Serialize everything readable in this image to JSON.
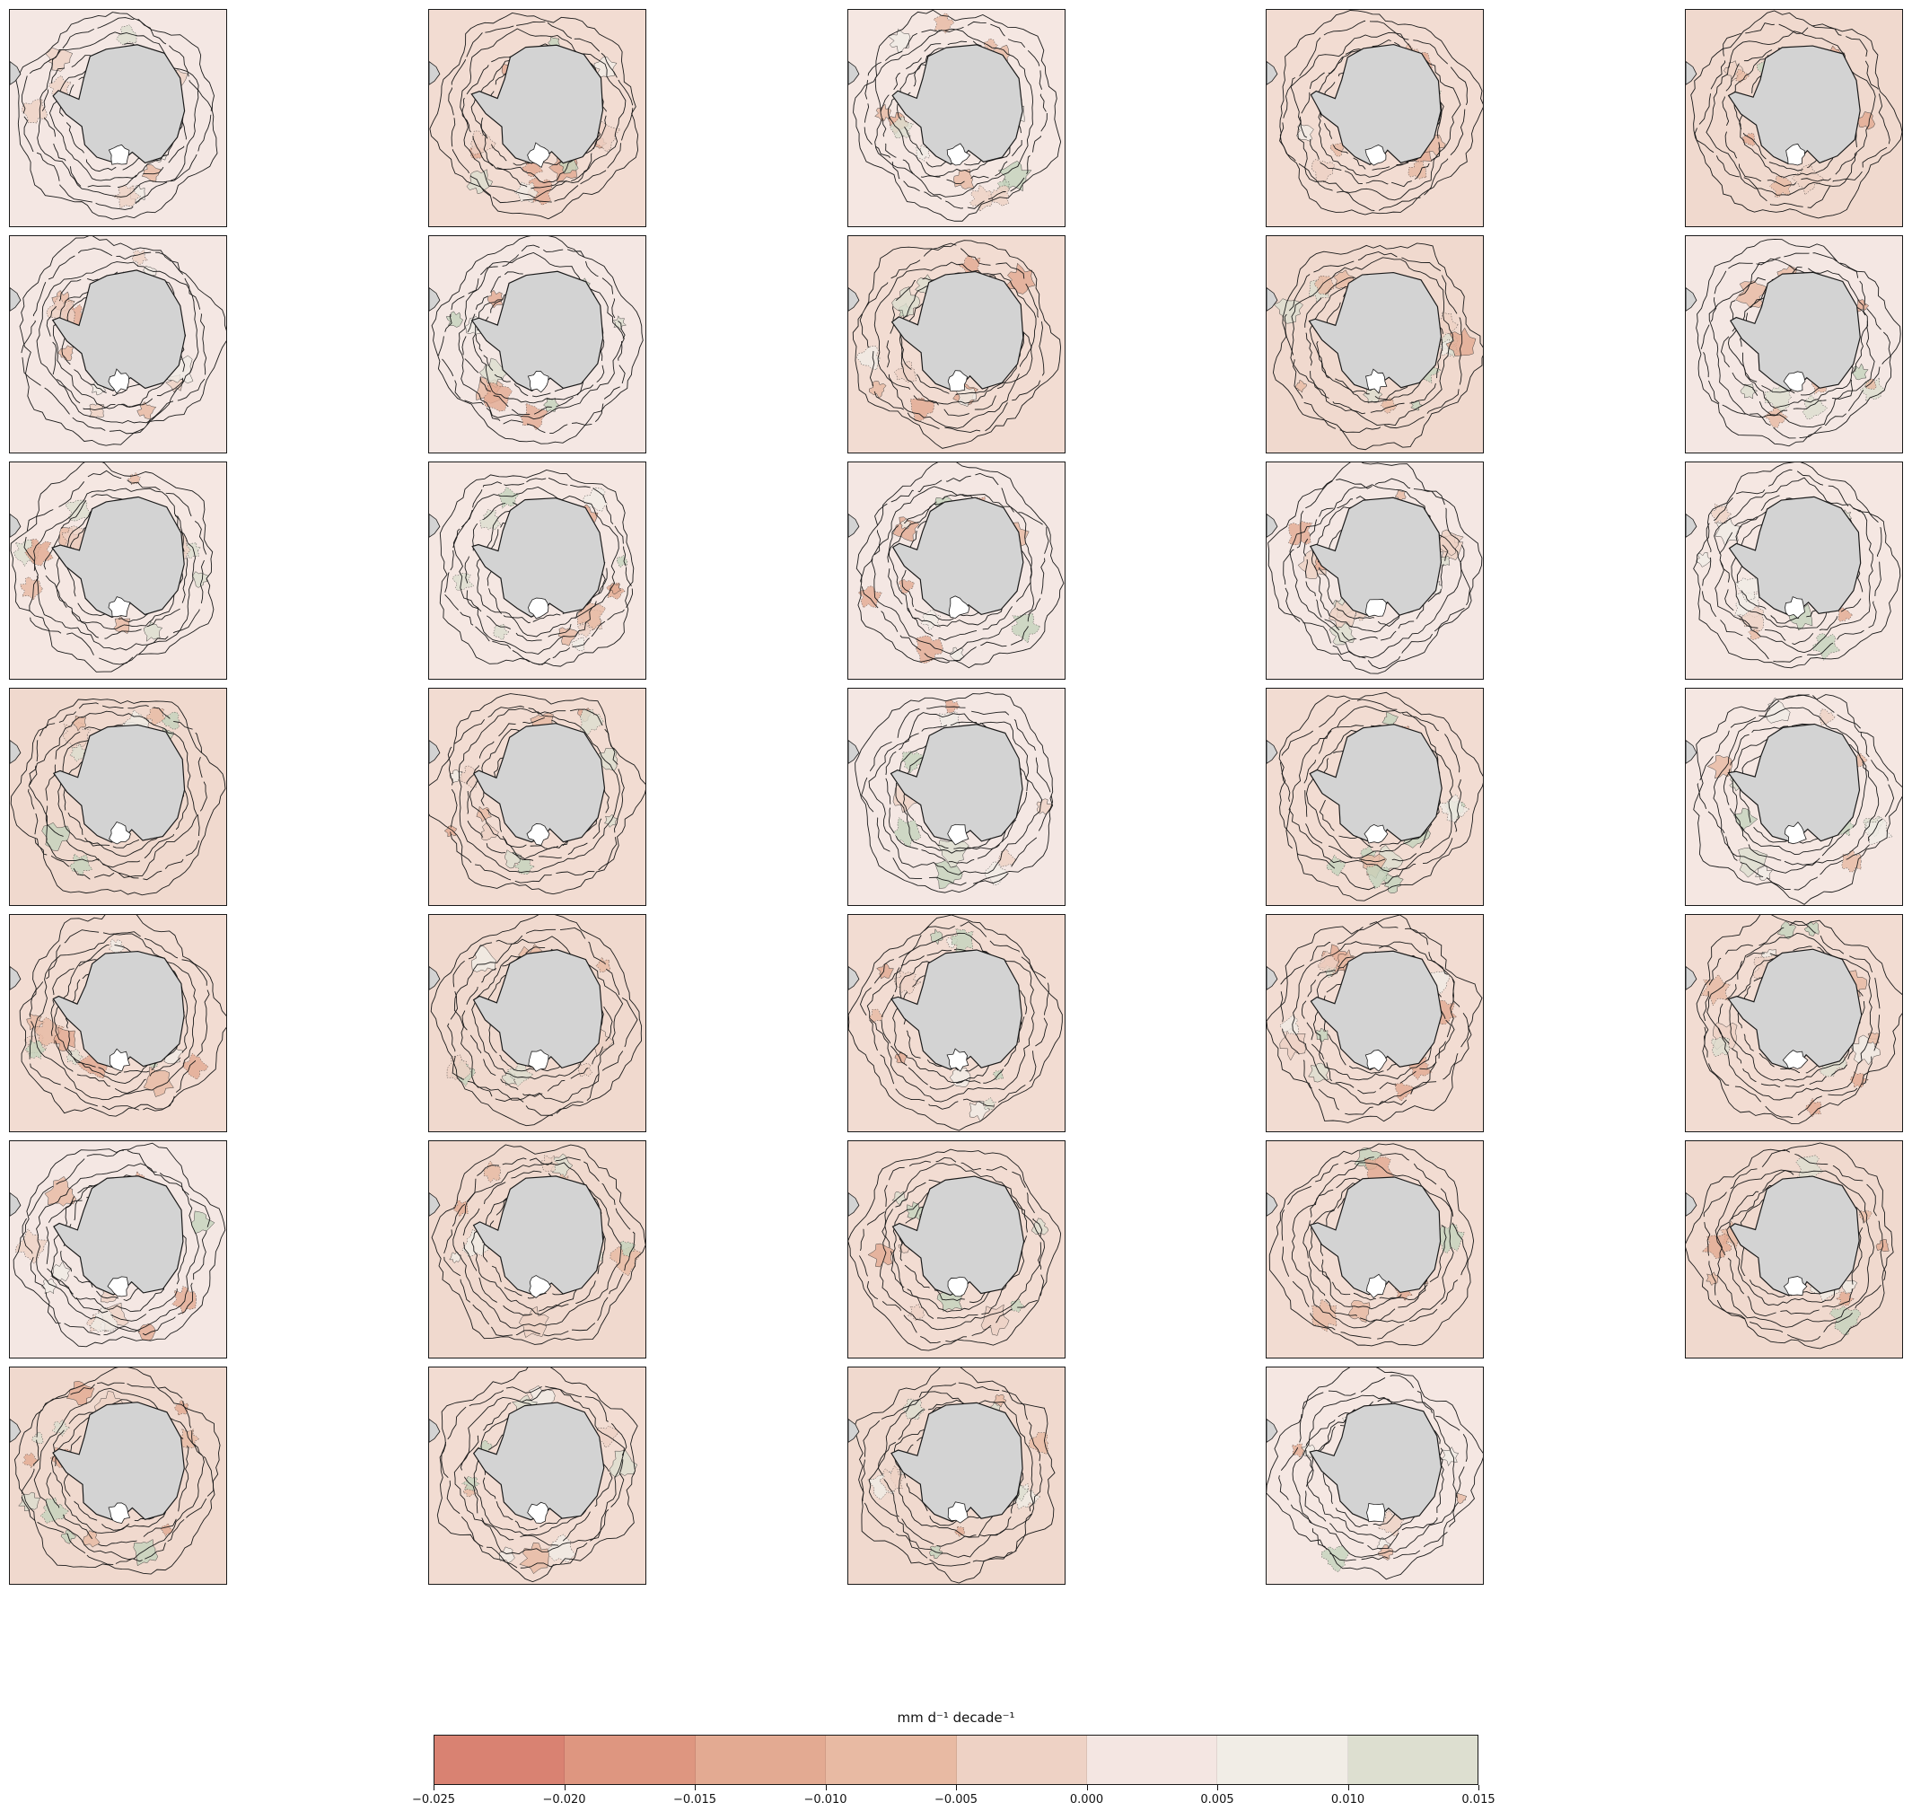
{
  "figure": {
    "panel_count": 34,
    "colors": {
      "land": "#d3d3d3",
      "contour_line": "#1a1a1a",
      "background_tint": "#f6e9e3"
    }
  },
  "colorbar": {
    "label": "mm d⁻¹ decade⁻¹",
    "levels": [
      -0.025,
      -0.02,
      -0.015,
      -0.01,
      -0.005,
      0.0,
      0.005,
      0.01,
      0.015
    ],
    "tick_labels": [
      "−0.025",
      "−0.020",
      "−0.015",
      "−0.010",
      "−0.005",
      "0.000",
      "0.005",
      "0.010",
      "0.015"
    ],
    "colors": [
      "#d98272",
      "#de9680",
      "#e3aa92",
      "#e8baa3",
      "#eed2c5",
      "#f4e6e2",
      "#f1ede6",
      "#dddfd0",
      "#c5d4bd"
    ]
  },
  "chart_data": {
    "type": "heatmap",
    "description": "",
    "panel_count": 34,
    "color_scale": {
      "min": -0.025,
      "max": 0.015,
      "bounds": [
        -0.025,
        -0.02,
        -0.015,
        -0.01,
        -0.005,
        0.0,
        0.005,
        0.01,
        0.015
      ],
      "unit": "mm d⁻¹ decade⁻¹"
    },
    "xlabel": "",
    "ylabel": "",
    "title": ""
  }
}
